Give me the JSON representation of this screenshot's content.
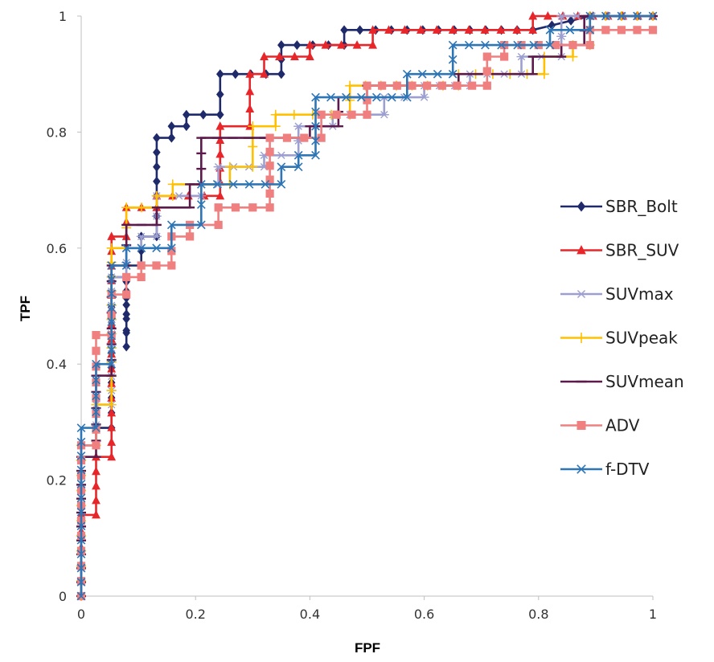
{
  "chart_data": {
    "type": "line",
    "title": "",
    "xlabel": "FPF",
    "ylabel": "TPF",
    "xlim": [
      0,
      1
    ],
    "ylim": [
      0,
      1
    ],
    "xticks": [
      "0",
      "0.2",
      "0.4",
      "0.6",
      "0.8",
      "1"
    ],
    "yticks": [
      "0",
      "0.2",
      "0.4",
      "0.6",
      "0.8",
      "1"
    ],
    "grid": false,
    "legend_position": "right",
    "series": [
      {
        "name": "SBR_Bolt",
        "color": "#1F2A6B",
        "marker": "diamond",
        "points": [
          [
            0,
            0
          ],
          [
            0,
            0.26
          ],
          [
            0.026,
            0.26
          ],
          [
            0.026,
            0.29
          ],
          [
            0.053,
            0.29
          ],
          [
            0.053,
            0.55
          ],
          [
            0.079,
            0.55
          ],
          [
            0.079,
            0.43
          ],
          [
            0.079,
            0.57
          ],
          [
            0.105,
            0.57
          ],
          [
            0.105,
            0.62
          ],
          [
            0.132,
            0.62
          ],
          [
            0.132,
            0.69
          ],
          [
            0.132,
            0.79
          ],
          [
            0.158,
            0.79
          ],
          [
            0.158,
            0.81
          ],
          [
            0.184,
            0.81
          ],
          [
            0.184,
            0.83
          ],
          [
            0.243,
            0.83
          ],
          [
            0.243,
            0.9
          ],
          [
            0.35,
            0.9
          ],
          [
            0.35,
            0.95
          ],
          [
            0.46,
            0.95
          ],
          [
            0.46,
            0.976
          ],
          [
            0.79,
            0.976
          ],
          [
            0.89,
            1
          ],
          [
            1,
            1
          ]
        ]
      },
      {
        "name": "SBR_SUV",
        "color": "#E8262A",
        "marker": "triangle",
        "points": [
          [
            0,
            0
          ],
          [
            0,
            0.14
          ],
          [
            0.026,
            0.14
          ],
          [
            0.026,
            0.24
          ],
          [
            0.053,
            0.24
          ],
          [
            0.053,
            0.62
          ],
          [
            0.079,
            0.62
          ],
          [
            0.079,
            0.67
          ],
          [
            0.132,
            0.67
          ],
          [
            0.132,
            0.69
          ],
          [
            0.243,
            0.69
          ],
          [
            0.243,
            0.81
          ],
          [
            0.295,
            0.81
          ],
          [
            0.295,
            0.9
          ],
          [
            0.32,
            0.9
          ],
          [
            0.32,
            0.93
          ],
          [
            0.4,
            0.93
          ],
          [
            0.4,
            0.95
          ],
          [
            0.51,
            0.95
          ],
          [
            0.51,
            0.976
          ],
          [
            0.79,
            0.976
          ],
          [
            0.79,
            1
          ],
          [
            1,
            1
          ]
        ]
      },
      {
        "name": "SUVmax",
        "color": "#9C9FD0",
        "marker": "star",
        "points": [
          [
            0,
            0
          ],
          [
            0,
            0.26
          ],
          [
            0.026,
            0.26
          ],
          [
            0.026,
            0.33
          ],
          [
            0.053,
            0.33
          ],
          [
            0.053,
            0.55
          ],
          [
            0.079,
            0.55
          ],
          [
            0.079,
            0.6
          ],
          [
            0.105,
            0.6
          ],
          [
            0.105,
            0.62
          ],
          [
            0.132,
            0.62
          ],
          [
            0.132,
            0.69
          ],
          [
            0.21,
            0.69
          ],
          [
            0.21,
            0.71
          ],
          [
            0.24,
            0.71
          ],
          [
            0.24,
            0.74
          ],
          [
            0.32,
            0.74
          ],
          [
            0.32,
            0.76
          ],
          [
            0.38,
            0.76
          ],
          [
            0.38,
            0.81
          ],
          [
            0.44,
            0.81
          ],
          [
            0.44,
            0.83
          ],
          [
            0.53,
            0.83
          ],
          [
            0.53,
            0.86
          ],
          [
            0.6,
            0.86
          ],
          [
            0.6,
            0.88
          ],
          [
            0.68,
            0.88
          ],
          [
            0.68,
            0.9
          ],
          [
            0.77,
            0.9
          ],
          [
            0.77,
            0.93
          ],
          [
            0.84,
            0.93
          ],
          [
            0.84,
            1
          ],
          [
            1,
            1
          ]
        ]
      },
      {
        "name": "SUVpeak",
        "color": "#FFC000",
        "marker": "plus",
        "points": [
          [
            0,
            0
          ],
          [
            0,
            0.26
          ],
          [
            0.026,
            0.26
          ],
          [
            0.026,
            0.33
          ],
          [
            0.053,
            0.33
          ],
          [
            0.053,
            0.6
          ],
          [
            0.079,
            0.6
          ],
          [
            0.079,
            0.67
          ],
          [
            0.132,
            0.67
          ],
          [
            0.132,
            0.69
          ],
          [
            0.16,
            0.69
          ],
          [
            0.16,
            0.71
          ],
          [
            0.21,
            0.71
          ],
          [
            0.26,
            0.71
          ],
          [
            0.26,
            0.74
          ],
          [
            0.3,
            0.74
          ],
          [
            0.3,
            0.81
          ],
          [
            0.34,
            0.81
          ],
          [
            0.34,
            0.83
          ],
          [
            0.47,
            0.83
          ],
          [
            0.47,
            0.88
          ],
          [
            0.66,
            0.88
          ],
          [
            0.66,
            0.9
          ],
          [
            0.81,
            0.9
          ],
          [
            0.81,
            0.93
          ],
          [
            0.86,
            0.93
          ],
          [
            0.86,
            0.95
          ],
          [
            0.89,
            0.95
          ],
          [
            0.89,
            1
          ],
          [
            1,
            1
          ]
        ]
      },
      {
        "name": "SUVmean",
        "color": "#5B1A4B",
        "marker": "dash",
        "points": [
          [
            0,
            0
          ],
          [
            0,
            0.24
          ],
          [
            0.026,
            0.24
          ],
          [
            0.026,
            0.38
          ],
          [
            0.053,
            0.38
          ],
          [
            0.053,
            0.57
          ],
          [
            0.079,
            0.57
          ],
          [
            0.079,
            0.64
          ],
          [
            0.132,
            0.64
          ],
          [
            0.132,
            0.67
          ],
          [
            0.19,
            0.67
          ],
          [
            0.19,
            0.71
          ],
          [
            0.21,
            0.71
          ],
          [
            0.21,
            0.79
          ],
          [
            0.32,
            0.79
          ],
          [
            0.32,
            0.79
          ],
          [
            0.4,
            0.79
          ],
          [
            0.4,
            0.81
          ],
          [
            0.45,
            0.81
          ],
          [
            0.45,
            0.86
          ],
          [
            0.5,
            0.86
          ],
          [
            0.5,
            0.88
          ],
          [
            0.66,
            0.88
          ],
          [
            0.66,
            0.9
          ],
          [
            0.79,
            0.9
          ],
          [
            0.79,
            0.93
          ],
          [
            0.84,
            0.93
          ],
          [
            0.84,
            0.95
          ],
          [
            0.88,
            0.95
          ],
          [
            0.88,
            1
          ],
          [
            1,
            1
          ]
        ]
      },
      {
        "name": "ADV",
        "color": "#F08080",
        "marker": "square",
        "points": [
          [
            0,
            0
          ],
          [
            0,
            0.26
          ],
          [
            0.026,
            0.26
          ],
          [
            0.026,
            0.45
          ],
          [
            0.053,
            0.45
          ],
          [
            0.053,
            0.52
          ],
          [
            0.079,
            0.52
          ],
          [
            0.079,
            0.55
          ],
          [
            0.105,
            0.55
          ],
          [
            0.105,
            0.57
          ],
          [
            0.158,
            0.57
          ],
          [
            0.158,
            0.62
          ],
          [
            0.19,
            0.62
          ],
          [
            0.19,
            0.64
          ],
          [
            0.24,
            0.64
          ],
          [
            0.24,
            0.67
          ],
          [
            0.33,
            0.67
          ],
          [
            0.33,
            0.79
          ],
          [
            0.42,
            0.79
          ],
          [
            0.42,
            0.83
          ],
          [
            0.5,
            0.83
          ],
          [
            0.5,
            0.88
          ],
          [
            0.71,
            0.88
          ],
          [
            0.71,
            0.93
          ],
          [
            0.74,
            0.93
          ],
          [
            0.74,
            0.95
          ],
          [
            0.89,
            0.95
          ],
          [
            0.89,
            0.976
          ],
          [
            1,
            0.976
          ]
        ]
      },
      {
        "name": "f-DTV",
        "color": "#2E75B6",
        "marker": "x",
        "points": [
          [
            0,
            0
          ],
          [
            0,
            0.29
          ],
          [
            0.026,
            0.29
          ],
          [
            0.026,
            0.4
          ],
          [
            0.053,
            0.4
          ],
          [
            0.053,
            0.57
          ],
          [
            0.079,
            0.57
          ],
          [
            0.079,
            0.6
          ],
          [
            0.158,
            0.6
          ],
          [
            0.158,
            0.64
          ],
          [
            0.21,
            0.64
          ],
          [
            0.21,
            0.71
          ],
          [
            0.35,
            0.71
          ],
          [
            0.35,
            0.74
          ],
          [
            0.38,
            0.74
          ],
          [
            0.38,
            0.76
          ],
          [
            0.41,
            0.76
          ],
          [
            0.41,
            0.86
          ],
          [
            0.57,
            0.86
          ],
          [
            0.57,
            0.9
          ],
          [
            0.65,
            0.9
          ],
          [
            0.65,
            0.95
          ],
          [
            0.82,
            0.95
          ],
          [
            0.82,
            0.976
          ],
          [
            0.89,
            0.976
          ],
          [
            0.89,
            1
          ],
          [
            1,
            1
          ]
        ]
      }
    ]
  }
}
